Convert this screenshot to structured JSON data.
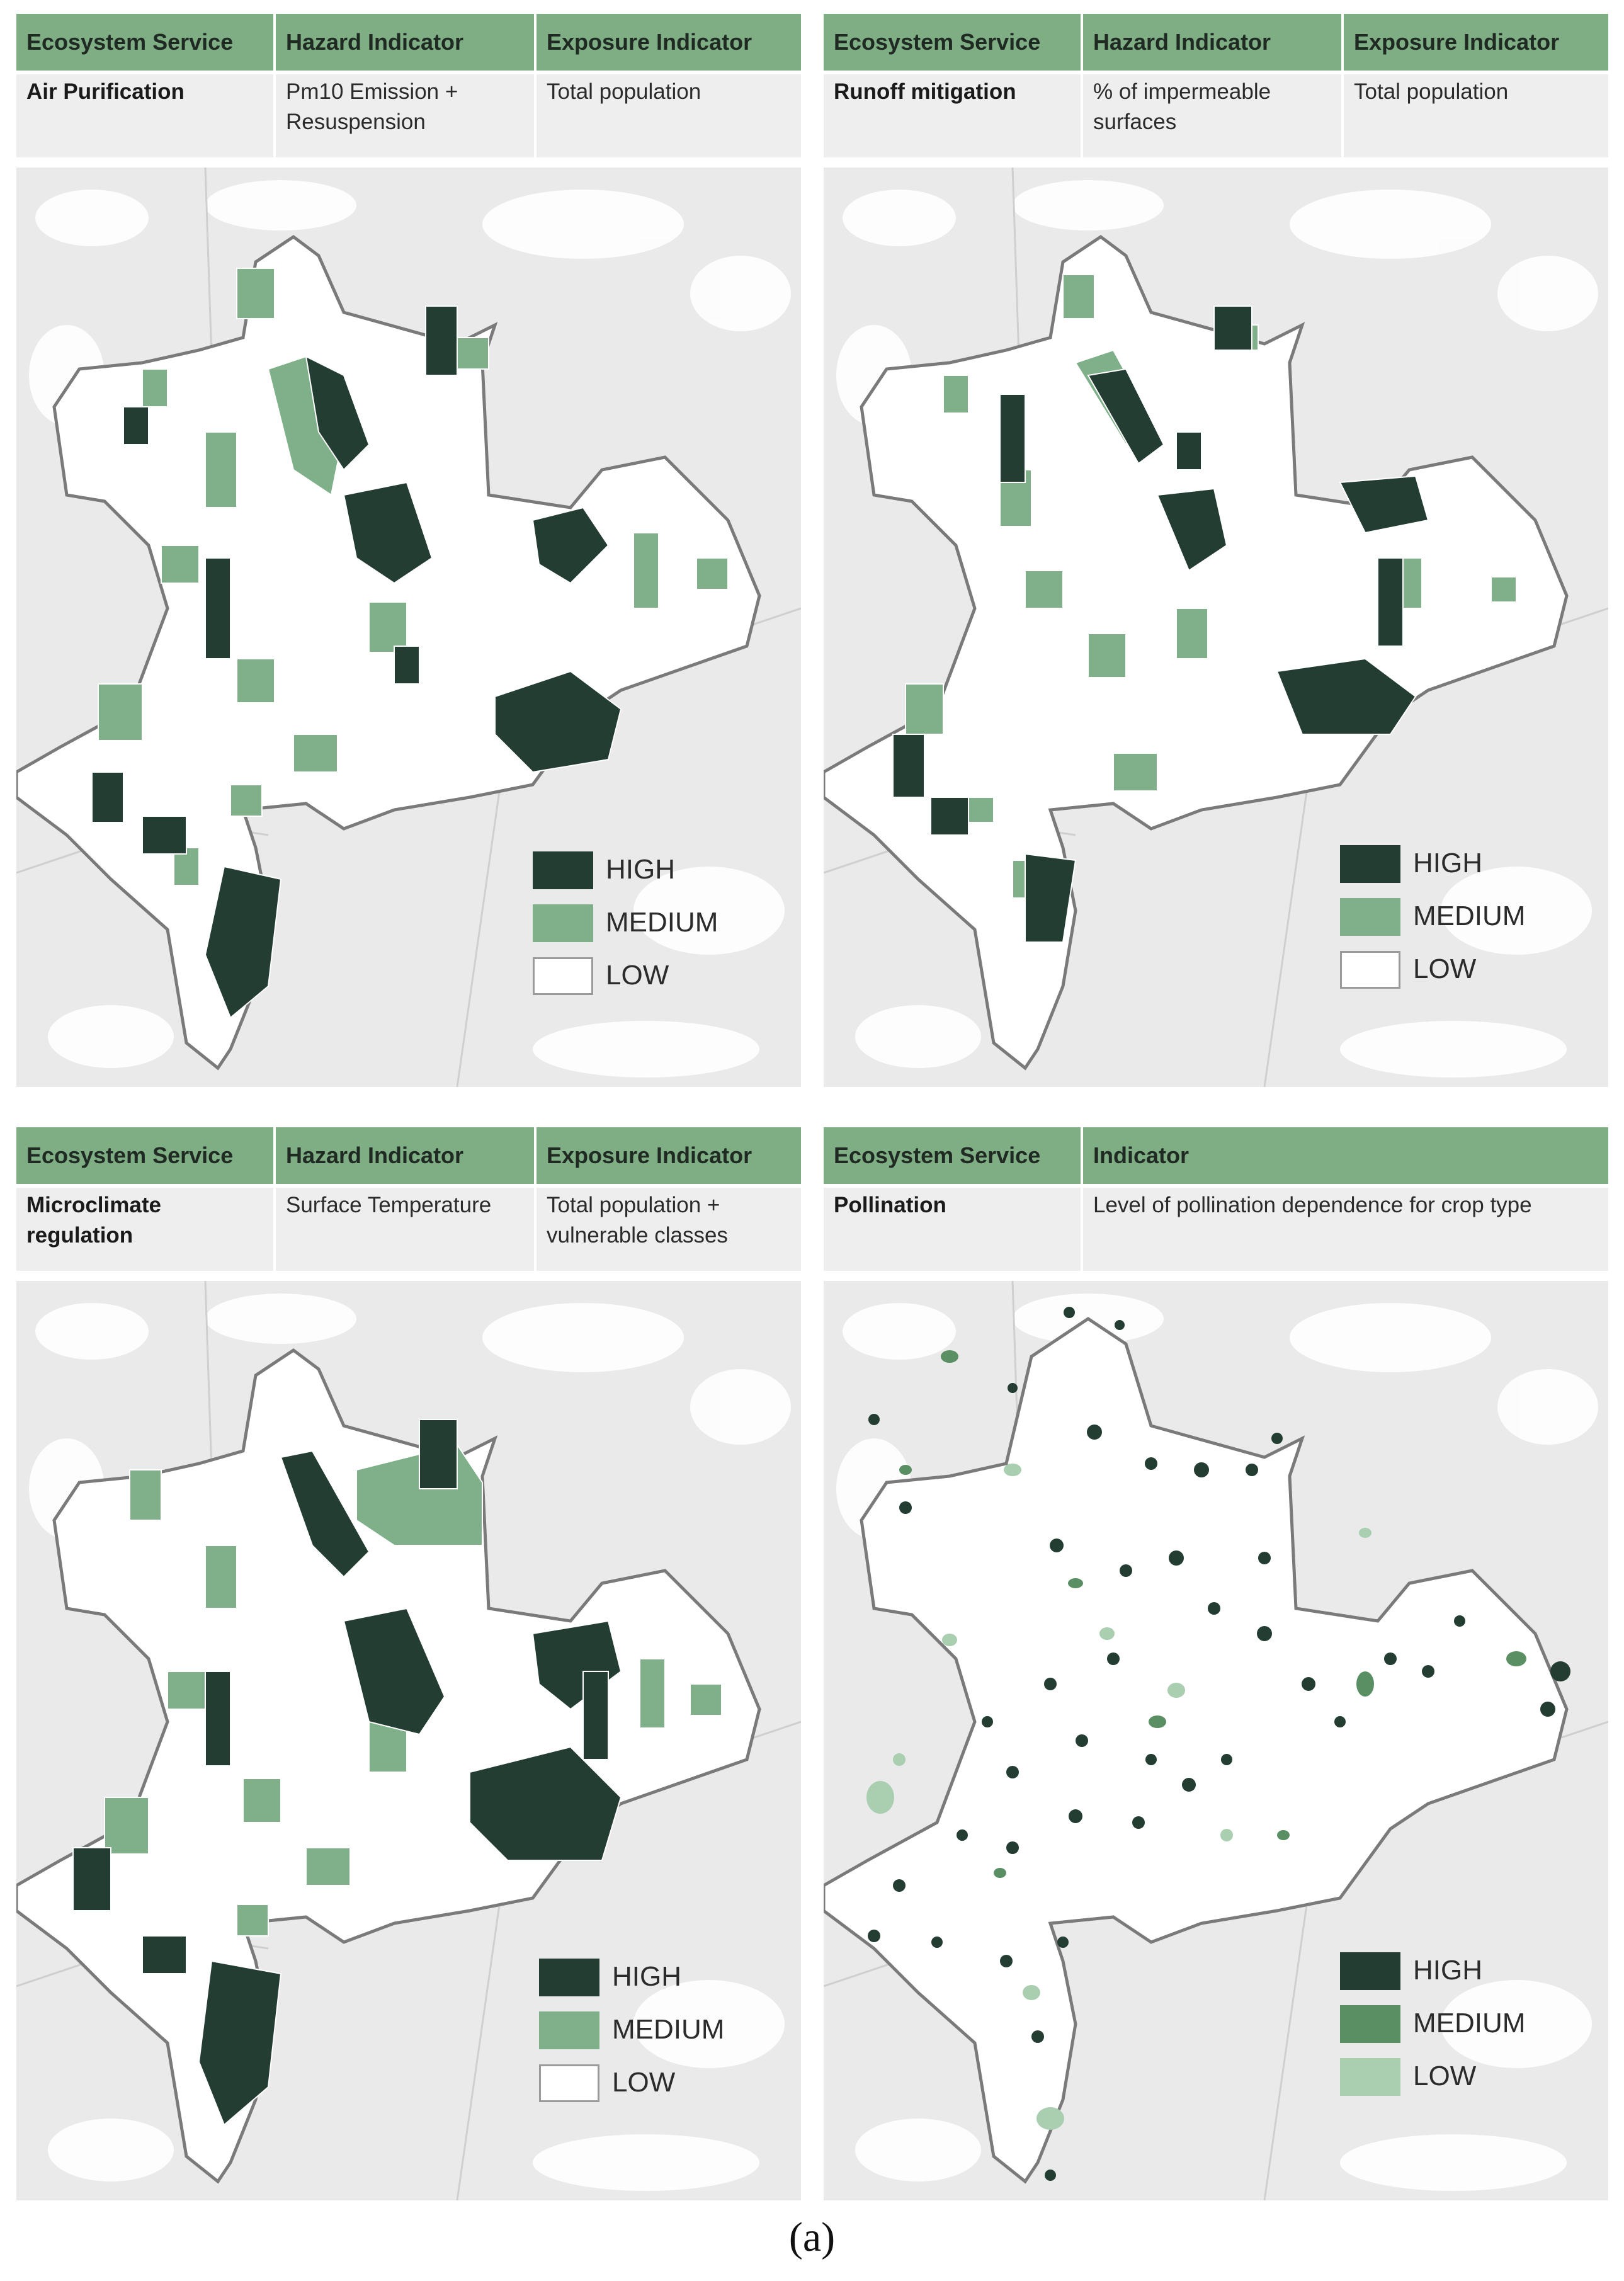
{
  "panels": [
    {
      "headers": [
        "Ecosystem Service",
        "Hazard Indicator",
        "Exposure Indicator"
      ],
      "service": "Air Purification",
      "hazard": "Pm10 Emission + Resuspension",
      "exposure": "Total population",
      "legend": [
        "HIGH",
        "MEDIUM",
        "LOW"
      ]
    },
    {
      "headers": [
        "Ecosystem Service",
        "Hazard Indicator",
        "Exposure Indicator"
      ],
      "service": "Runoff mitigation",
      "hazard": "% of impermeable surfaces",
      "exposure": "Total population",
      "legend": [
        "HIGH",
        "MEDIUM",
        "LOW"
      ]
    },
    {
      "headers": [
        "Ecosystem Service",
        "Hazard Indicator",
        "Exposure Indicator"
      ],
      "service": "Microclimate regulation",
      "hazard": "Surface Temperature",
      "exposure": "Total population + vulnerable classes",
      "legend": [
        "HIGH",
        "MEDIUM",
        "LOW"
      ]
    },
    {
      "headers": [
        "Ecosystem Service",
        "Indicator"
      ],
      "service": "Pollination",
      "indicator": "Level of pollination dependence for crop type",
      "legend": [
        "HIGH",
        "MEDIUM",
        "LOW"
      ]
    }
  ],
  "colors": {
    "high": "#243d33",
    "medium": "#7fb08a",
    "low": "#ffffff",
    "pollination_medium": "#5a8f64",
    "pollination_low": "#a9ceb0",
    "header": "#7fad84",
    "background": "#eaeaea"
  },
  "caption": "(a)"
}
